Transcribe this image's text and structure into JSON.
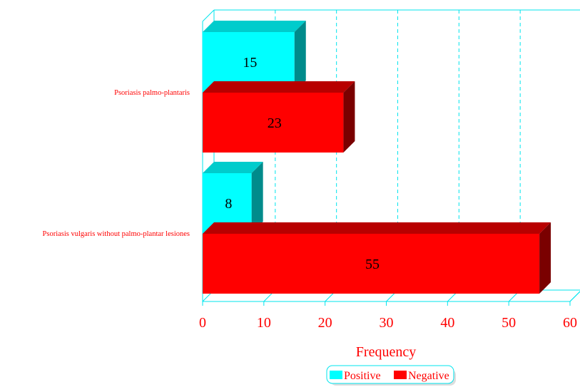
{
  "chart_data": {
    "type": "bar",
    "orientation": "horizontal",
    "three_d": true,
    "categories": [
      "Psoriasis palmo-plantaris",
      "Psoriasis vulgaris without palmo-plantar lesiones"
    ],
    "series": [
      {
        "name": "Positive",
        "values": [
          15,
          8
        ],
        "color": "#00ffff",
        "side_color": "#008b8b",
        "top_color": "#00cccc"
      },
      {
        "name": "Negative",
        "values": [
          23,
          55
        ],
        "color": "#ff0000",
        "side_color": "#7a0000",
        "top_color": "#b80000"
      }
    ],
    "xlabel": "Frequency",
    "xlim": [
      0,
      60
    ],
    "xticks": [
      "0",
      "10",
      "20",
      "30",
      "40",
      "50",
      "60"
    ],
    "grid": true,
    "legend_position": "bottom",
    "axis_color": "#00e5ee",
    "text_color": "#ff0000"
  }
}
